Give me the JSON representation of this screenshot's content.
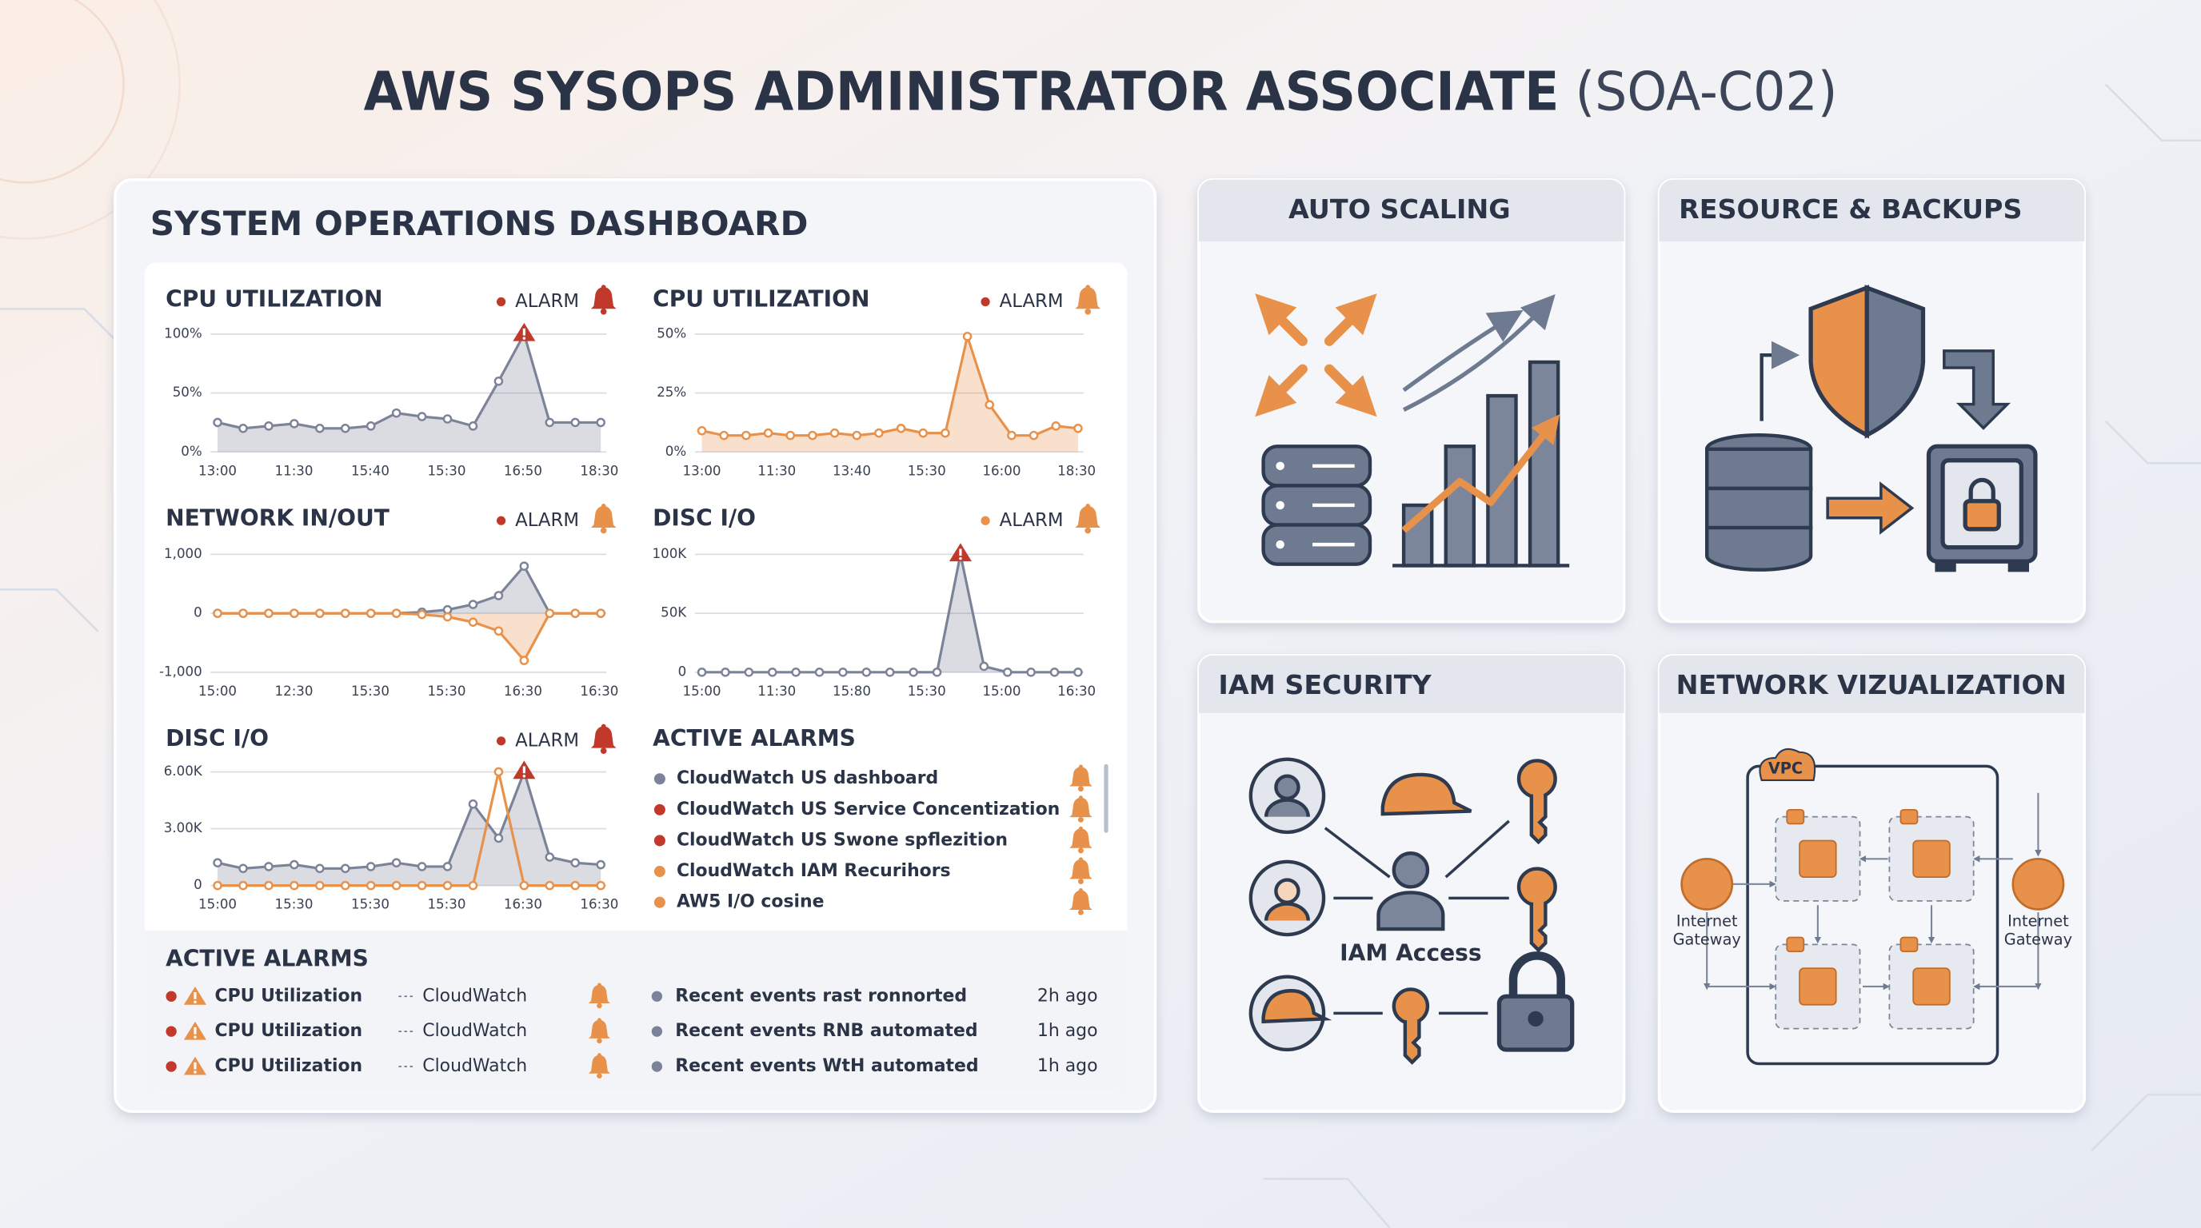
{
  "title": {
    "main": "AWS SYSOPS ADMINISTRATOR ASSOCIATE",
    "code": "(SOA-C02)"
  },
  "dashboard": {
    "title": "SYSTEM OPERATIONS DASHBOARD",
    "charts": [
      {
        "type": "line",
        "title": "CPU UTILIZATION",
        "alarm": "ALARM",
        "alarm_color": "#c0392b",
        "bell_color": "#c0392b",
        "peak_marker": true,
        "ylim": [
          0,
          100
        ],
        "yticks": [
          {
            "value": 0,
            "label": "0%"
          },
          {
            "value": 50,
            "label": "50%"
          },
          {
            "value": 100,
            "label": "100%"
          }
        ],
        "xtick_labels": [
          "13:00",
          "11:30",
          "15:40",
          "15:30",
          "16:50",
          "18:30"
        ],
        "series": [
          {
            "color": "#7b8398",
            "fill": true,
            "values": [
              25,
              20,
              22,
              24,
              20,
              20,
              22,
              33,
              30,
              28,
              22,
              60,
              100,
              25,
              25,
              25
            ]
          }
        ]
      },
      {
        "type": "line",
        "title": "CPU UTILIZATION",
        "alarm": "ALARM",
        "alarm_color": "#c0392b",
        "bell_color": "#e8914a",
        "peak_marker": false,
        "ylim": [
          0,
          50
        ],
        "yticks": [
          {
            "value": 0,
            "label": "0%"
          },
          {
            "value": 25,
            "label": "25%"
          },
          {
            "value": 50,
            "label": "50%"
          }
        ],
        "xtick_labels": [
          "13:00",
          "11:30",
          "13:40",
          "15:30",
          "16:00",
          "18:30"
        ],
        "series": [
          {
            "color": "#e8914a",
            "fill": true,
            "values": [
              9,
              7,
              7,
              8,
              7,
              7,
              8,
              7,
              8,
              10,
              8,
              8,
              49,
              20,
              7,
              7,
              11,
              10
            ]
          }
        ]
      },
      {
        "type": "line",
        "title": "NETWORK IN/OUT",
        "alarm": "ALARM",
        "alarm_color": "#c0392b",
        "bell_color": "#e8914a",
        "peak_marker": false,
        "ylim": [
          -1000,
          1000
        ],
        "yticks": [
          {
            "value": -1000,
            "label": "-1,000"
          },
          0,
          {
            "value": 1000,
            "label": "1,000"
          }
        ],
        "xtick_labels": [
          "15:00",
          "12:30",
          "15:30",
          "15:30",
          "16:30",
          "16:30"
        ],
        "series": [
          {
            "color": "#7b8398",
            "fill": true,
            "values": [
              0,
              0,
              0,
              0,
              0,
              0,
              0,
              0,
              20,
              60,
              150,
              300,
              800,
              0,
              0,
              0
            ]
          },
          {
            "color": "#e8914a",
            "fill": true,
            "values": [
              0,
              0,
              0,
              0,
              0,
              0,
              0,
              0,
              -20,
              -60,
              -150,
              -300,
              -800,
              0,
              0,
              0
            ]
          }
        ]
      },
      {
        "type": "line",
        "title": "DISC I/O",
        "alarm": "ALARM",
        "alarm_color": "#e8914a",
        "bell_color": "#e8914a",
        "peak_marker": true,
        "ylim": [
          0,
          100000
        ],
        "yticks": [
          0,
          {
            "value": 50000,
            "label": "50K"
          },
          {
            "value": 100000,
            "label": "100K"
          }
        ],
        "xtick_labels": [
          "15:00",
          "11:30",
          "15:80",
          "15:30",
          "15:00",
          "16:30"
        ],
        "series": [
          {
            "color": "#7b8398",
            "fill": true,
            "values": [
              0,
              0,
              0,
              0,
              0,
              0,
              0,
              0,
              0,
              0,
              0,
              100000,
              5000,
              0,
              0,
              0,
              0
            ]
          }
        ]
      },
      {
        "type": "line",
        "title": "DISC I/O",
        "alarm": "ALARM",
        "alarm_color": "#c0392b",
        "bell_color": "#c0392b",
        "peak_marker": true,
        "ylim": [
          0,
          6000
        ],
        "yticks": [
          0,
          {
            "value": 3000,
            "label": "3.00K"
          },
          {
            "value": 6000,
            "label": "6.00K"
          }
        ],
        "xtick_labels": [
          "15:00",
          "15:30",
          "15:30",
          "15:30",
          "16:30",
          "16:30"
        ],
        "series": [
          {
            "color": "#7b8398",
            "fill": true,
            "values": [
              1200,
              900,
              1000,
              1100,
              900,
              900,
              1000,
              1200,
              1000,
              1000,
              4300,
              2500,
              6000,
              1500,
              1200,
              1100
            ]
          },
          {
            "color": "#e8914a",
            "fill": false,
            "values": [
              0,
              0,
              0,
              0,
              0,
              0,
              0,
              0,
              0,
              0,
              0,
              6000,
              0,
              0,
              0,
              0
            ]
          }
        ]
      }
    ],
    "active_alarms": {
      "title": "ACTIVE ALARMS",
      "items": [
        {
          "text": "CloudWatch US dashboard",
          "color": "#7b8398"
        },
        {
          "text": "CloudWatch US Service Concentization",
          "color": "#c0392b"
        },
        {
          "text": "CloudWatch US Swone spflezition",
          "color": "#c0392b"
        },
        {
          "text": "CloudWatch IAM Recurihors",
          "color": "#e8914a"
        },
        {
          "text": "AW5 I/O cosine",
          "color": "#e8914a"
        }
      ]
    },
    "bottom_alarms": {
      "title": "ACTIVE ALARMS",
      "alarms": [
        {
          "metric": "CPU Utilization",
          "source": "CloudWatch"
        },
        {
          "metric": "CPU Utilization",
          "source": "CloudWatch"
        },
        {
          "metric": "CPU Utilization",
          "source": "CloudWatch"
        }
      ],
      "events": [
        {
          "text": "Recent events rast ronnorted",
          "time": "2h ago"
        },
        {
          "text": "Recent events RNB automated",
          "time": "1h ago"
        },
        {
          "text": "Recent events WtH automated",
          "time": "1h ago"
        }
      ]
    }
  },
  "cards": {
    "auto_scaling": {
      "title": "AUTO SCALING"
    },
    "resource_backups": {
      "title": "RESOURCE & BACKUPS"
    },
    "iam_security": {
      "title": "IAM SECURITY",
      "center_label": "IAM Access"
    },
    "network": {
      "title": "NETWORK VIZUALIZATION",
      "vpc": "VPC",
      "gateway_left": [
        "Internet",
        "Gateway"
      ],
      "gateway_right": [
        "Internet",
        "Gateway"
      ]
    }
  }
}
